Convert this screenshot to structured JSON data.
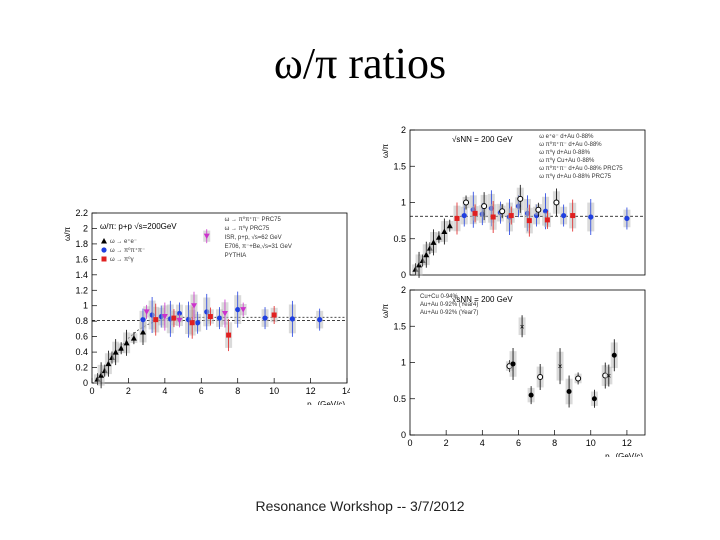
{
  "slide": {
    "title": "ω/π ratios",
    "footer": "Resonance Workshop -- 3/7/2012"
  },
  "colors": {
    "black": "#000000",
    "blue": "#1f3fe0",
    "red": "#e02020",
    "magenta": "#cc33cc",
    "band": "#bbbbbb"
  },
  "chart_data": [
    {
      "id": "left",
      "type": "scatter",
      "title": "ω/π: p+p √s=200GeV",
      "ylabel": "ω/π",
      "xlabel_prefix": "p",
      "xlabel_suffix": " (GeV/c)",
      "xlim": [
        0,
        14
      ],
      "ylim": [
        0,
        2.2
      ],
      "xticks": [
        "0",
        "2",
        "4",
        "6",
        "8",
        "10",
        "12",
        "14"
      ],
      "xtick_values": [
        0,
        2,
        4,
        6,
        8,
        10,
        12,
        14
      ],
      "yticks": [
        "0",
        "0.2",
        "0.4",
        "0.6",
        "0.8",
        "1",
        "1.2",
        "1.4",
        "1.6",
        "1.8",
        "2",
        "2.2"
      ],
      "ytick_values": [
        0,
        0.2,
        0.4,
        0.6,
        0.8,
        1,
        1.2,
        1.4,
        1.6,
        1.8,
        2,
        2.2
      ],
      "reference_line": 0.81,
      "legend_left": [
        "ω → e⁺e⁻",
        "ω → π⁰π⁺π⁻",
        "ω → π⁰γ"
      ],
      "legend_right": [
        "ω → π⁰π⁺π⁻ PRC75",
        "ω → π⁰γ PRC75",
        "ISR, p+p, √s=62 GeV",
        "E706, π⁻+Be,√s=31 GeV",
        "PYTHIA"
      ],
      "series": [
        {
          "name": "ω → e⁺e⁻",
          "color": "black",
          "marker": "triangle",
          "x": [
            0.3,
            0.5,
            0.7,
            0.9,
            1.1,
            1.3,
            1.6,
            1.9,
            2.3,
            2.8
          ],
          "y": [
            0.05,
            0.1,
            0.16,
            0.25,
            0.33,
            0.4,
            0.45,
            0.52,
            0.58,
            0.66
          ]
        },
        {
          "name": "ω → π⁰π⁺π⁻",
          "color": "blue",
          "marker": "circle",
          "x": [
            2.8,
            3.3,
            3.8,
            4.3,
            4.8,
            5.3,
            5.8,
            6.3,
            7.0,
            8.0,
            9.5,
            11.0,
            12.5
          ],
          "y": [
            0.82,
            0.88,
            0.86,
            0.83,
            0.9,
            0.82,
            0.78,
            0.92,
            0.84,
            0.95,
            0.84,
            0.83,
            0.82
          ]
        },
        {
          "name": "ω → π⁰γ",
          "color": "red",
          "marker": "square",
          "x": [
            3.5,
            4.5,
            5.5,
            6.5,
            7.5,
            10.0
          ],
          "y": [
            0.82,
            0.84,
            0.78,
            0.86,
            0.62,
            0.88
          ]
        },
        {
          "name": "E706 / PYTHIA",
          "color": "magenta",
          "marker": "triangle-down",
          "x": [
            3.0,
            4.0,
            4.8,
            5.6,
            6.3,
            7.3,
            8.3
          ],
          "y": [
            0.92,
            0.86,
            0.81,
            1.0,
            1.9,
            0.9,
            0.95
          ]
        }
      ],
      "curve": {
        "name": "PYTHIA",
        "x": [
          0.2,
          0.6,
          1.0,
          1.5,
          2.0,
          2.5,
          3.0,
          3.5,
          4.0,
          5.0,
          6.0,
          8.0,
          10.0,
          12.0,
          14.0
        ],
        "y": [
          0.05,
          0.17,
          0.3,
          0.45,
          0.58,
          0.68,
          0.75,
          0.8,
          0.83,
          0.85,
          0.85,
          0.85,
          0.85,
          0.85,
          0.85
        ]
      }
    },
    {
      "id": "right_top",
      "type": "scatter",
      "ylabel": "ω/π",
      "annotation": "√sNN = 200 GeV",
      "xlim": [
        0,
        13
      ],
      "ylim": [
        0,
        2
      ],
      "yticks": [
        "0",
        "0.5",
        "1",
        "1.5",
        "2"
      ],
      "ytick_values": [
        0,
        0.5,
        1,
        1.5,
        2
      ],
      "reference_line": 0.81,
      "legend": [
        "ω e⁺e⁻ d+Au 0-88%",
        "ω π⁰π⁺π⁻ d+Au 0-88%",
        "ω π⁰γ d+Au 0-88%",
        "ω π⁰γ Cu+Au 0-88%",
        "ω π⁰π⁺π⁻ d+Au 0-88% PRC75",
        "ω π⁰γ d+Au 0-88% PRC75"
      ],
      "series": [
        {
          "name": "ω → e⁺e⁻",
          "color": "black",
          "marker": "triangle",
          "x": [
            0.3,
            0.5,
            0.7,
            0.9,
            1.1,
            1.3,
            1.6,
            1.9,
            2.2
          ],
          "y": [
            0.08,
            0.14,
            0.2,
            0.28,
            0.37,
            0.45,
            0.52,
            0.6,
            0.68
          ]
        },
        {
          "name": "ω → π⁰π⁺π⁻",
          "color": "blue",
          "marker": "circle",
          "x": [
            3.0,
            3.5,
            4.0,
            4.5,
            5.0,
            5.5,
            6.0,
            6.5,
            7.0,
            7.5,
            8.5,
            10.0,
            12.0
          ],
          "y": [
            0.82,
            0.9,
            0.84,
            0.92,
            0.86,
            0.8,
            0.95,
            0.85,
            0.82,
            0.88,
            0.82,
            0.8,
            0.78
          ]
        },
        {
          "name": "ω → π⁰γ",
          "color": "red",
          "marker": "square",
          "x": [
            2.6,
            3.6,
            4.6,
            5.6,
            6.6,
            7.6,
            9.0
          ],
          "y": [
            0.78,
            0.85,
            0.8,
            0.82,
            0.75,
            0.76,
            0.82
          ]
        },
        {
          "name": "PRC75",
          "color": "black",
          "marker": "open-circle",
          "x": [
            3.1,
            4.1,
            5.1,
            6.1,
            7.1,
            8.1
          ],
          "y": [
            1.0,
            0.95,
            0.88,
            1.05,
            0.9,
            1.0
          ]
        }
      ]
    },
    {
      "id": "right_bottom",
      "type": "scatter",
      "ylabel": "ω/π",
      "annotation": "√sNN = 200 GeV",
      "xlabel_prefix": "p",
      "xlabel_suffix": " (GeV/c)",
      "xlim": [
        0,
        13
      ],
      "ylim": [
        0,
        2
      ],
      "xticks": [
        "0",
        "2",
        "4",
        "6",
        "8",
        "10",
        "12"
      ],
      "xtick_values": [
        0,
        2,
        4,
        6,
        8,
        10,
        12
      ],
      "yticks": [
        "0",
        "0.5",
        "1",
        "1.5",
        "2"
      ],
      "ytick_values": [
        0,
        0.5,
        1,
        1.5,
        2
      ],
      "legend": [
        "Cu+Cu 0-94%",
        "Au+Au 0-92% (Year4)",
        "Au+Au 0-92% (Year7)"
      ],
      "series": [
        {
          "name": "Cu+Cu 0-94%",
          "color": "black",
          "marker": "open-circle",
          "x": [
            5.5,
            7.2,
            9.3,
            10.8
          ],
          "y": [
            0.95,
            0.8,
            0.78,
            0.82
          ]
        },
        {
          "name": "Au+Au 0-92% (Year4)",
          "color": "black",
          "marker": "cross",
          "x": [
            6.2,
            8.3,
            11.0
          ],
          "y": [
            1.5,
            0.95,
            0.82
          ]
        },
        {
          "name": "Au+Au 0-92% (Year7)",
          "color": "black",
          "marker": "filled-circle",
          "x": [
            5.7,
            6.7,
            8.8,
            10.2,
            11.3
          ],
          "y": [
            0.98,
            0.55,
            0.6,
            0.5,
            1.1
          ]
        }
      ]
    }
  ]
}
